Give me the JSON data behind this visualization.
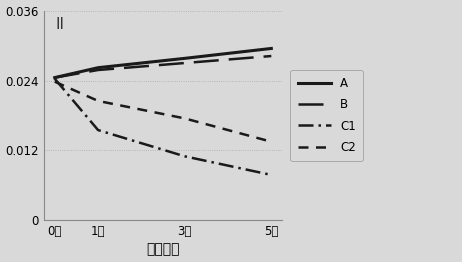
{
  "x": [
    0,
    1,
    3,
    5
  ],
  "x_labels": [
    "0次",
    "1次",
    "3次",
    "5次"
  ],
  "lines": {
    "A": {
      "y": [
        0.0245,
        0.0262,
        0.0278,
        0.0295
      ],
      "linestyle": "solid",
      "linewidth": 2.2,
      "color": "#1a1a1a",
      "label": "A"
    },
    "B": {
      "y": [
        0.0245,
        0.0258,
        0.027,
        0.0282
      ],
      "linewidth": 1.8,
      "color": "#1a1a1a",
      "label": "B",
      "dashes": [
        10,
        4
      ]
    },
    "C1": {
      "y": [
        0.0243,
        0.0155,
        0.011,
        0.0078
      ],
      "linewidth": 1.8,
      "color": "#1a1a1a",
      "label": "C1",
      "dashes": [
        6,
        2,
        1,
        2
      ]
    },
    "C2": {
      "y": [
        0.0238,
        0.0205,
        0.0175,
        0.0135
      ],
      "linewidth": 1.8,
      "color": "#1a1a1a",
      "label": "C2",
      "dashes": [
        4,
        3,
        4,
        3
      ]
    }
  },
  "ylim": [
    0,
    0.036
  ],
  "yticks": [
    0,
    0.012,
    0.024,
    0.036
  ],
  "xlabel": "锻炼次数",
  "panel_label": "II",
  "background_color": "#d9d9d9",
  "legend_loc": "right"
}
